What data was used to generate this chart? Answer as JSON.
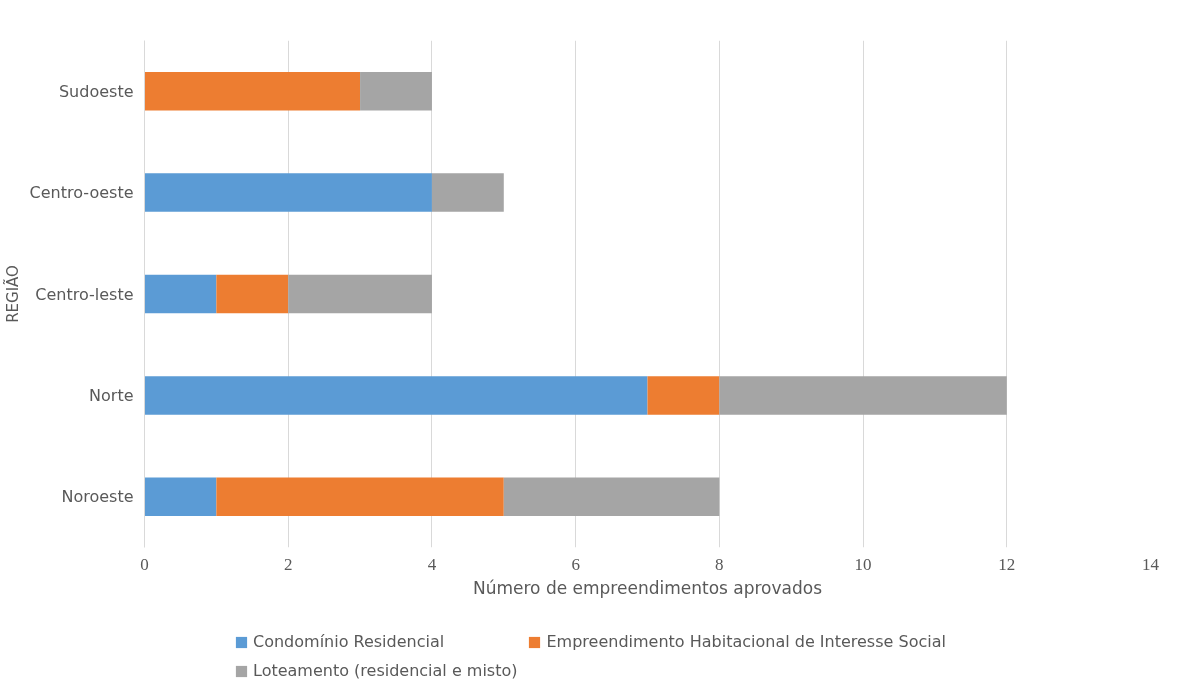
{
  "chart_data": {
    "type": "bar",
    "orientation": "horizontal",
    "stacked": true,
    "categories": [
      "Sudoeste",
      "Centro-oeste",
      "Centro-leste",
      "Norte",
      "Noroeste"
    ],
    "series": [
      {
        "name": "Condomínio Residencial",
        "color": "#5b9bd5",
        "values": [
          0,
          4,
          1,
          7,
          1
        ]
      },
      {
        "name": "Empreendimento Habitacional de Interesse Social",
        "color": "#ed7d31",
        "values": [
          3,
          0,
          1,
          1,
          4
        ]
      },
      {
        "name": "Loteamento (residencial e misto)",
        "color": "#a5a5a5",
        "values": [
          1,
          1,
          2,
          4,
          3
        ]
      }
    ],
    "xlim": [
      0,
      14
    ],
    "xticks": [
      0,
      2,
      4,
      6,
      8,
      10,
      12,
      14
    ],
    "xlabel": "Número de empreendimentos aprovados",
    "ylabel": "REGIÃO",
    "grid": "x",
    "legend": "bottom"
  }
}
